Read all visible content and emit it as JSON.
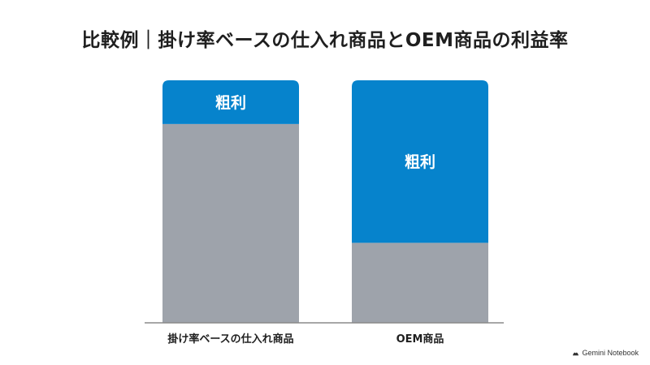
{
  "chart_data": {
    "title": "比較例｜掛け率ベースの仕入れ商品とOEM商品の利益率",
    "type": "bar",
    "stacked": true,
    "categories": [
      "掛け率ベースの仕入れ商品",
      "OEM商品"
    ],
    "series": [
      {
        "values": [
          82,
          33
        ],
        "color": "#9ea3ab"
      },
      {
        "name": "粗利",
        "values": [
          18,
          67
        ],
        "color": "#0683cc"
      }
    ],
    "ylim": [
      0,
      100
    ],
    "xlabel": "",
    "ylabel": "",
    "grid": false,
    "legend": "none"
  },
  "footer": {
    "watermark": "Gemini Notebook"
  },
  "colors": {
    "title": "#1f1f1f",
    "axis": "#8a8a8a",
    "label_on_bar": "#ffffff"
  }
}
